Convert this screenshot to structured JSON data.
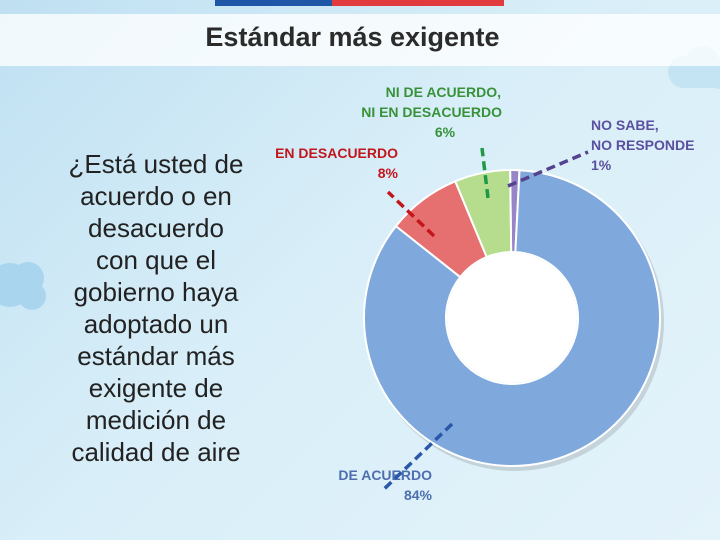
{
  "page": {
    "title": "Estándar más exigente",
    "question_lines": [
      "¿Está usted de",
      "acuerdo o en",
      "desacuerdo",
      "con que el",
      "gobierno haya",
      "adoptado un",
      "estándar más",
      "exigente de",
      "medición de",
      "calidad de aire"
    ]
  },
  "chart_data": {
    "type": "pie",
    "donut": true,
    "categories": [
      "DE ACUERDO",
      "EN DESACUERDO",
      "NI DE ACUERDO, NI EN DESACUERDO",
      "NO SABE, NO RESPONDE"
    ],
    "values": [
      84,
      8,
      6,
      1
    ],
    "value_labels": [
      "84%",
      "8%",
      "6%",
      "1%"
    ],
    "label_lines": [
      [
        "DE ACUERDO",
        "84%"
      ],
      [
        "EN DESACUERDO",
        "8%"
      ],
      [
        "NI DE ACUERDO,",
        "NI EN DESACUERDO",
        "6%"
      ],
      [
        "NO SABE,",
        "NO RESPONDE",
        "1%"
      ]
    ],
    "colors": [
      "#7fa9dd",
      "#e66f6f",
      "#b6dc8e",
      "#9785c7"
    ],
    "label_colors": [
      "#4d6fb0",
      "#c2161d",
      "#38923a",
      "#5b4fa0"
    ],
    "leader_colors": [
      "#2a57a8",
      "#c2161d",
      "#1e9a45",
      "#54428e"
    ]
  }
}
